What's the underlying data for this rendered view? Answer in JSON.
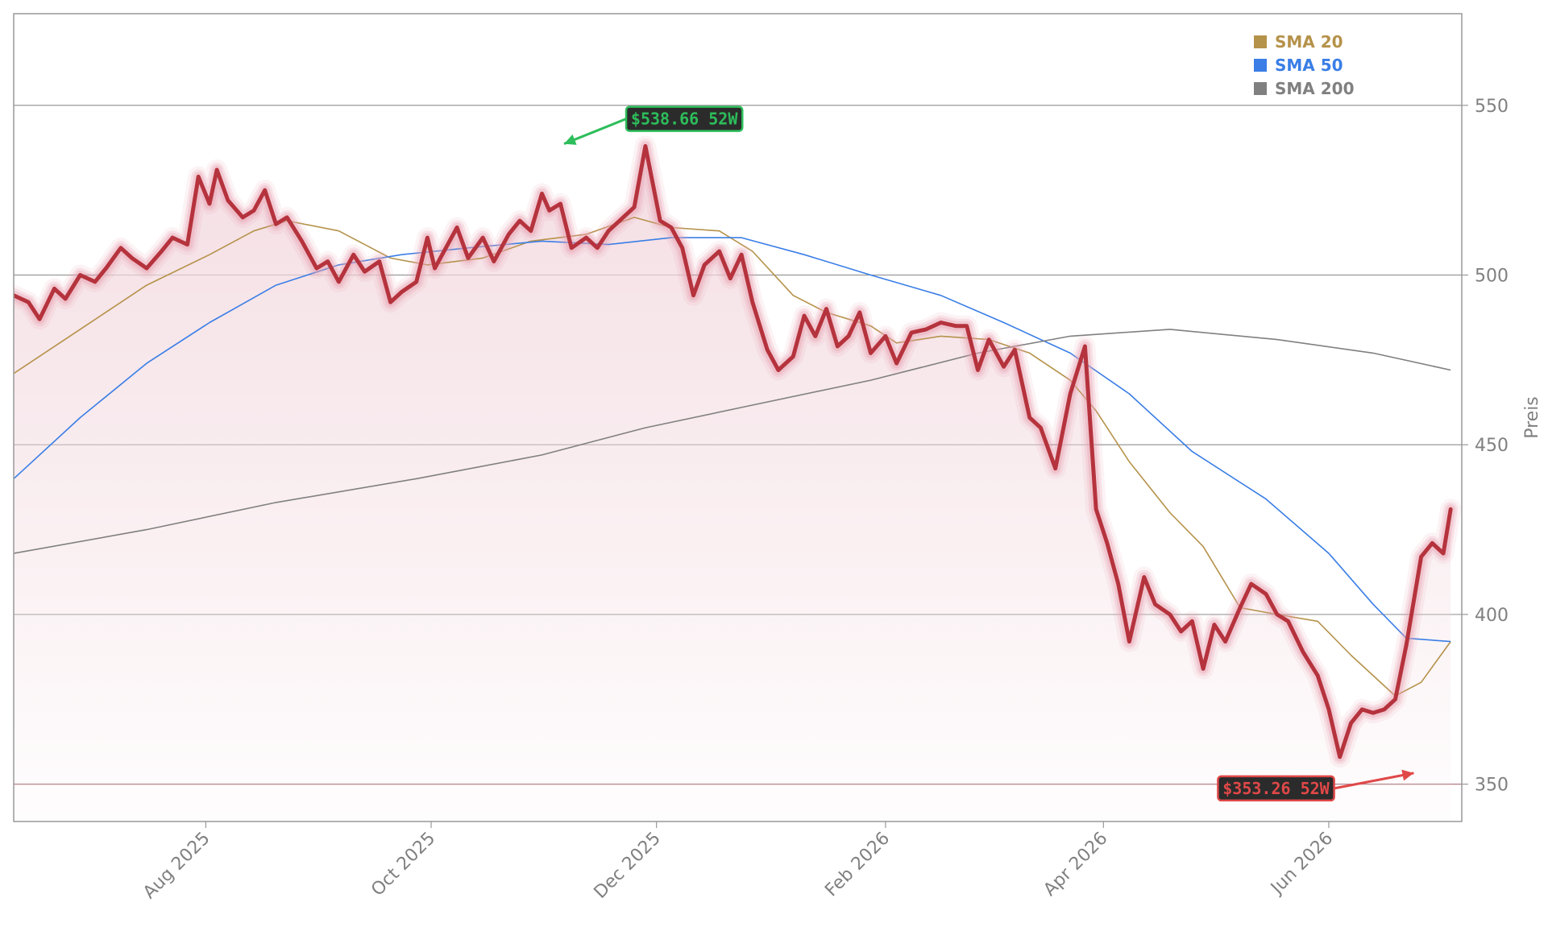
{
  "chart_data": {
    "type": "line",
    "title": "",
    "xlabel": "",
    "ylabel": "Preis",
    "ylim": [
      339,
      577
    ],
    "x_range": [
      "2025-06-10",
      "2026-07-07"
    ],
    "y_ticks": [
      350,
      400,
      450,
      500,
      550
    ],
    "x_ticks": [
      {
        "date": "2025-08-01",
        "label": "Aug 2025"
      },
      {
        "date": "2025-10-01",
        "label": "Oct 2025"
      },
      {
        "date": "2025-12-01",
        "label": "Dec 2025"
      },
      {
        "date": "2026-02-01",
        "label": "Feb 2026"
      },
      {
        "date": "2026-04-01",
        "label": "Apr 2026"
      },
      {
        "date": "2026-06-01",
        "label": "Jun 2026"
      }
    ],
    "grid": "horizontal",
    "legend": {
      "position": "top-right",
      "entries": [
        {
          "name": "SMA 20",
          "color": "#b5924a"
        },
        {
          "name": "SMA 50",
          "color": "#3a7ee6"
        },
        {
          "name": "SMA 200",
          "color": "#808080"
        }
      ]
    },
    "colors": {
      "price": "#b5333d",
      "price_glow": "#e8a0b0",
      "area_fill": "#f2d8de",
      "high_callout": "#2dbd5a",
      "low_callout": "#e04848",
      "low_line": "#b07b86"
    },
    "annotations": [
      {
        "label": "$538.66 52W",
        "date": "2025-11-06",
        "value": 538.66,
        "kind": "high"
      },
      {
        "label": "$353.26 52W",
        "date": "2026-06-24",
        "value": 353.26,
        "kind": "low"
      }
    ],
    "series": [
      {
        "name": "Price",
        "points": [
          [
            "2025-06-10",
            494
          ],
          [
            "2025-06-14",
            492
          ],
          [
            "2025-06-17",
            487
          ],
          [
            "2025-06-21",
            496
          ],
          [
            "2025-06-24",
            493
          ],
          [
            "2025-06-28",
            500
          ],
          [
            "2025-07-02",
            498
          ],
          [
            "2025-07-05",
            502
          ],
          [
            "2025-07-09",
            508
          ],
          [
            "2025-07-12",
            505
          ],
          [
            "2025-07-16",
            502
          ],
          [
            "2025-07-20",
            507
          ],
          [
            "2025-07-23",
            511
          ],
          [
            "2025-07-27",
            509
          ],
          [
            "2025-07-30",
            529
          ],
          [
            "2025-08-02",
            521
          ],
          [
            "2025-08-04",
            531
          ],
          [
            "2025-08-07",
            522
          ],
          [
            "2025-08-11",
            517
          ],
          [
            "2025-08-14",
            519
          ],
          [
            "2025-08-17",
            525
          ],
          [
            "2025-08-20",
            515
          ],
          [
            "2025-08-23",
            517
          ],
          [
            "2025-08-27",
            510
          ],
          [
            "2025-08-31",
            502
          ],
          [
            "2025-09-03",
            504
          ],
          [
            "2025-09-06",
            498
          ],
          [
            "2025-09-10",
            506
          ],
          [
            "2025-09-13",
            501
          ],
          [
            "2025-09-17",
            504
          ],
          [
            "2025-09-20",
            492
          ],
          [
            "2025-09-23",
            495
          ],
          [
            "2025-09-27",
            498
          ],
          [
            "2025-09-30",
            511
          ],
          [
            "2025-10-02",
            502
          ],
          [
            "2025-10-05",
            508
          ],
          [
            "2025-10-08",
            514
          ],
          [
            "2025-10-11",
            505
          ],
          [
            "2025-10-15",
            511
          ],
          [
            "2025-10-18",
            504
          ],
          [
            "2025-10-22",
            512
          ],
          [
            "2025-10-25",
            516
          ],
          [
            "2025-10-28",
            513
          ],
          [
            "2025-10-31",
            524
          ],
          [
            "2025-11-02",
            519
          ],
          [
            "2025-11-05",
            521
          ],
          [
            "2025-11-08",
            508
          ],
          [
            "2025-11-12",
            511
          ],
          [
            "2025-11-15",
            508
          ],
          [
            "2025-11-18",
            513
          ],
          [
            "2025-11-21",
            516
          ],
          [
            "2025-11-25",
            520
          ],
          [
            "2025-11-28",
            538
          ],
          [
            "2025-12-02",
            516
          ],
          [
            "2025-12-05",
            514
          ],
          [
            "2025-12-08",
            508
          ],
          [
            "2025-12-11",
            494
          ],
          [
            "2025-12-14",
            503
          ],
          [
            "2025-12-18",
            507
          ],
          [
            "2025-12-21",
            499
          ],
          [
            "2025-12-24",
            506
          ],
          [
            "2025-12-27",
            492
          ],
          [
            "2025-12-31",
            478
          ],
          [
            "2026-01-03",
            472
          ],
          [
            "2026-01-07",
            476
          ],
          [
            "2026-01-10",
            488
          ],
          [
            "2026-01-13",
            482
          ],
          [
            "2026-01-16",
            490
          ],
          [
            "2026-01-19",
            479
          ],
          [
            "2026-01-22",
            482
          ],
          [
            "2026-01-25",
            489
          ],
          [
            "2026-01-28",
            477
          ],
          [
            "2026-02-01",
            482
          ],
          [
            "2026-02-04",
            474
          ],
          [
            "2026-02-08",
            483
          ],
          [
            "2026-02-12",
            484
          ],
          [
            "2026-02-16",
            486
          ],
          [
            "2026-02-20",
            485
          ],
          [
            "2026-02-23",
            485
          ],
          [
            "2026-02-26",
            472
          ],
          [
            "2026-03-01",
            481
          ],
          [
            "2026-03-05",
            473
          ],
          [
            "2026-03-08",
            478
          ],
          [
            "2026-03-12",
            458
          ],
          [
            "2026-03-15",
            455
          ],
          [
            "2026-03-19",
            443
          ],
          [
            "2026-03-23",
            465
          ],
          [
            "2026-03-27",
            479
          ],
          [
            "2026-03-30",
            431
          ],
          [
            "2026-04-02",
            421
          ],
          [
            "2026-04-05",
            409
          ],
          [
            "2026-04-08",
            392
          ],
          [
            "2026-04-12",
            411
          ],
          [
            "2026-04-15",
            403
          ],
          [
            "2026-04-19",
            400
          ],
          [
            "2026-04-22",
            395
          ],
          [
            "2026-04-25",
            398
          ],
          [
            "2026-04-28",
            384
          ],
          [
            "2026-05-01",
            397
          ],
          [
            "2026-05-04",
            392
          ],
          [
            "2026-05-08",
            402
          ],
          [
            "2026-05-11",
            409
          ],
          [
            "2026-05-15",
            406
          ],
          [
            "2026-05-18",
            400
          ],
          [
            "2026-05-21",
            398
          ],
          [
            "2026-05-25",
            389
          ],
          [
            "2026-05-29",
            382
          ],
          [
            "2026-06-01",
            372
          ],
          [
            "2026-06-04",
            358
          ],
          [
            "2026-06-07",
            368
          ],
          [
            "2026-06-10",
            372
          ],
          [
            "2026-06-13",
            371
          ],
          [
            "2026-06-16",
            372
          ],
          [
            "2026-06-19",
            375
          ],
          [
            "2026-06-22",
            391
          ],
          [
            "2026-06-26",
            417
          ],
          [
            "2026-06-29",
            421
          ],
          [
            "2026-07-02",
            418
          ],
          [
            "2026-07-04",
            431
          ]
        ]
      },
      {
        "name": "SMA 20",
        "points": [
          [
            "2025-06-10",
            471
          ],
          [
            "2025-06-28",
            484
          ],
          [
            "2025-07-16",
            497
          ],
          [
            "2025-08-02",
            506
          ],
          [
            "2025-08-14",
            513
          ],
          [
            "2025-08-23",
            516
          ],
          [
            "2025-09-06",
            513
          ],
          [
            "2025-09-20",
            505
          ],
          [
            "2025-09-30",
            503
          ],
          [
            "2025-10-15",
            505
          ],
          [
            "2025-10-28",
            510
          ],
          [
            "2025-11-12",
            512
          ],
          [
            "2025-11-25",
            517
          ],
          [
            "2025-12-05",
            514
          ],
          [
            "2025-12-18",
            513
          ],
          [
            "2025-12-27",
            507
          ],
          [
            "2026-01-07",
            494
          ],
          [
            "2026-01-16",
            489
          ],
          [
            "2026-01-28",
            485
          ],
          [
            "2026-02-04",
            480
          ],
          [
            "2026-02-16",
            482
          ],
          [
            "2026-03-01",
            481
          ],
          [
            "2026-03-12",
            477
          ],
          [
            "2026-03-23",
            469
          ],
          [
            "2026-03-30",
            460
          ],
          [
            "2026-04-08",
            445
          ],
          [
            "2026-04-19",
            430
          ],
          [
            "2026-04-28",
            420
          ],
          [
            "2026-05-08",
            402
          ],
          [
            "2026-05-18",
            400
          ],
          [
            "2026-05-29",
            398
          ],
          [
            "2026-06-07",
            388
          ],
          [
            "2026-06-19",
            376
          ],
          [
            "2026-06-26",
            380
          ],
          [
            "2026-07-04",
            392
          ]
        ]
      },
      {
        "name": "SMA 50",
        "points": [
          [
            "2025-06-10",
            440
          ],
          [
            "2025-06-28",
            458
          ],
          [
            "2025-07-16",
            474
          ],
          [
            "2025-08-02",
            486
          ],
          [
            "2025-08-20",
            497
          ],
          [
            "2025-09-06",
            503
          ],
          [
            "2025-09-23",
            506
          ],
          [
            "2025-10-11",
            508
          ],
          [
            "2025-10-31",
            510
          ],
          [
            "2025-11-18",
            509
          ],
          [
            "2025-12-05",
            511
          ],
          [
            "2025-12-24",
            511
          ],
          [
            "2026-01-10",
            506
          ],
          [
            "2026-01-28",
            500
          ],
          [
            "2026-02-16",
            494
          ],
          [
            "2026-03-05",
            486
          ],
          [
            "2026-03-23",
            477
          ],
          [
            "2026-04-08",
            465
          ],
          [
            "2026-04-25",
            448
          ],
          [
            "2026-05-15",
            434
          ],
          [
            "2026-06-01",
            418
          ],
          [
            "2026-06-13",
            403
          ],
          [
            "2026-06-22",
            393
          ],
          [
            "2026-07-04",
            392
          ]
        ]
      },
      {
        "name": "SMA 200",
        "points": [
          [
            "2025-06-10",
            418
          ],
          [
            "2025-07-16",
            425
          ],
          [
            "2025-08-20",
            433
          ],
          [
            "2025-09-27",
            440
          ],
          [
            "2025-10-31",
            447
          ],
          [
            "2025-11-28",
            455
          ],
          [
            "2025-12-24",
            461
          ],
          [
            "2026-01-28",
            469
          ],
          [
            "2026-02-26",
            477
          ],
          [
            "2026-03-23",
            482
          ],
          [
            "2026-04-19",
            484
          ],
          [
            "2026-05-18",
            481
          ],
          [
            "2026-06-13",
            477
          ],
          [
            "2026-07-04",
            472
          ]
        ]
      }
    ]
  }
}
